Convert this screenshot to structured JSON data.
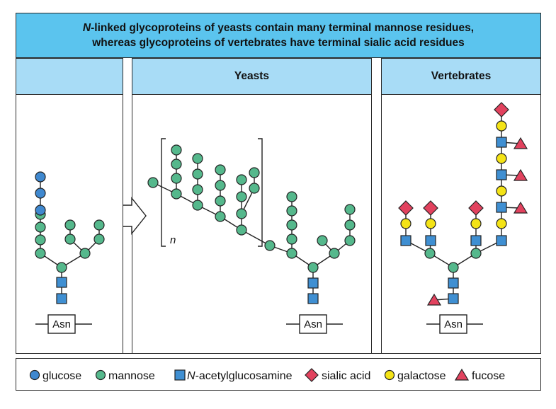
{
  "header": {
    "line1_italic": "N",
    "line1_rest": "-linked glycoproteins of yeasts contain many terminal mannose residues,",
    "line2": "whereas glycoproteins of vertebrates have terminal sialic acid residues"
  },
  "panels": {
    "left_title": "",
    "yeasts_title": "Yeasts",
    "vertebrates_title": "Vertebrates"
  },
  "labels": {
    "asn": "Asn",
    "repeat_n": "n"
  },
  "legend": {
    "glucose": "glucose",
    "mannose": "mannose",
    "glcnac_italic": "N",
    "glcnac_rest": "-acetylglucosamine",
    "sialic": "sialic acid",
    "galactose": "galactose",
    "fucose": "fucose"
  },
  "colors": {
    "glucose": "#3f88cf",
    "mannose": "#55b88c",
    "glcnac": "#3f8fd2",
    "sialic": "#e2425e",
    "galactose": "#f4e316",
    "fucose": "#e2425e",
    "header_bg": "#5bc4ee",
    "panel_head_bg": "#a8dcf6"
  }
}
